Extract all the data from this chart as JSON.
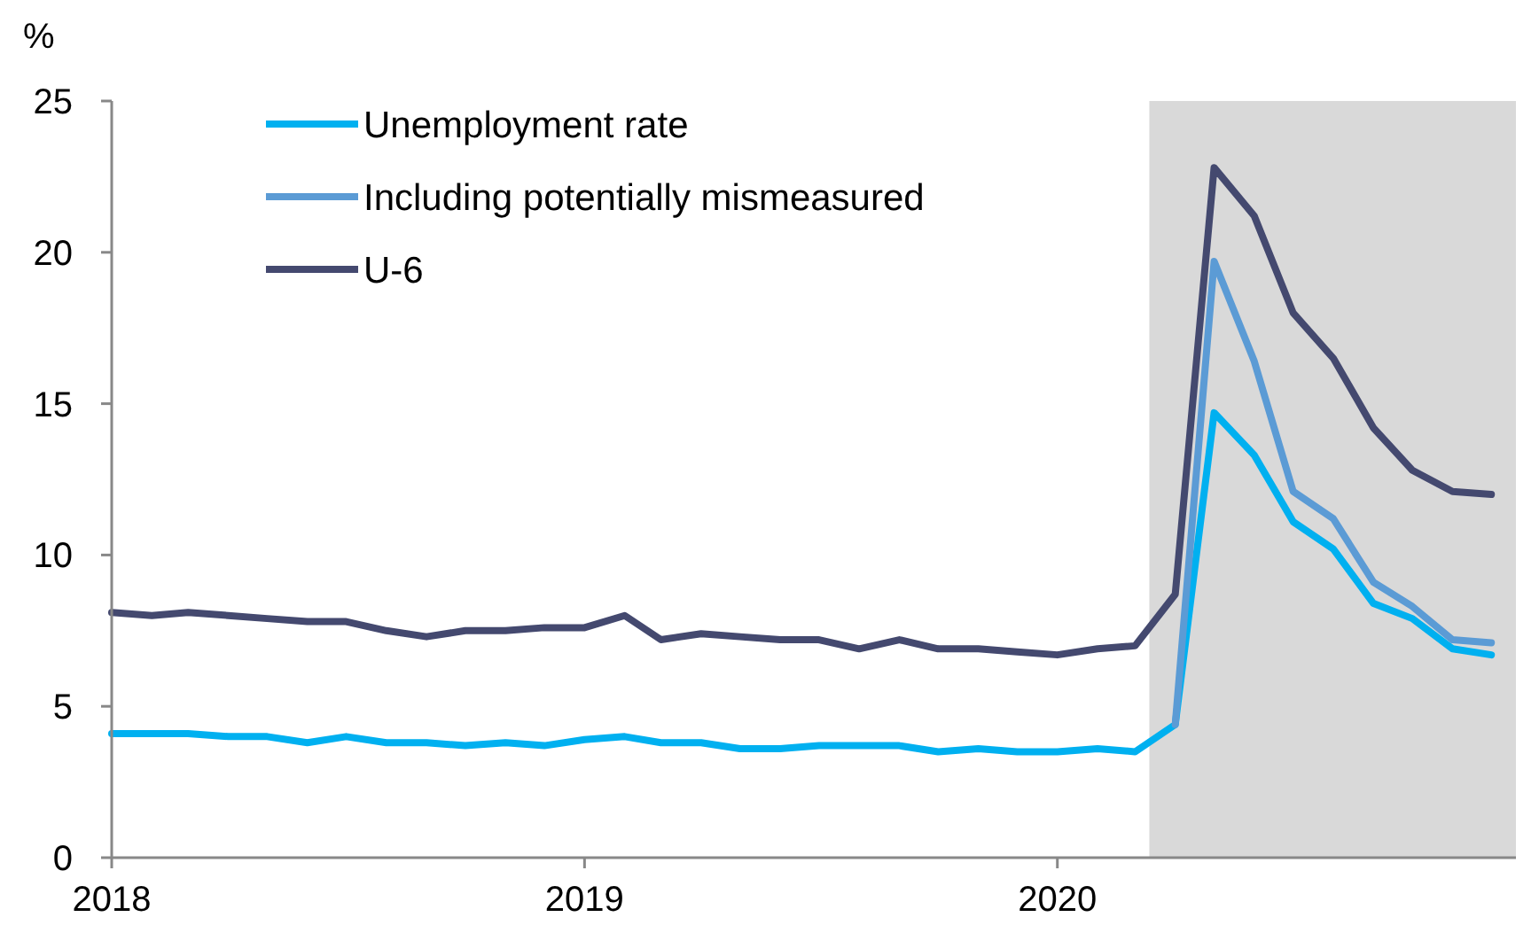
{
  "chart_data": {
    "type": "line",
    "ylabel": "%",
    "x": [
      "2018-01",
      "2018-02",
      "2018-03",
      "2018-04",
      "2018-05",
      "2018-06",
      "2018-07",
      "2018-08",
      "2018-09",
      "2018-10",
      "2018-11",
      "2018-12",
      "2019-01",
      "2019-02",
      "2019-03",
      "2019-04",
      "2019-05",
      "2019-06",
      "2019-07",
      "2019-08",
      "2019-09",
      "2019-10",
      "2019-11",
      "2019-12",
      "2020-01",
      "2020-02",
      "2020-03",
      "2020-04",
      "2020-05",
      "2020-06",
      "2020-07",
      "2020-08",
      "2020-09",
      "2020-10",
      "2020-11",
      "2020-12"
    ],
    "series": [
      {
        "name": "Unemployment rate",
        "color": "#00b0f0",
        "values": [
          4.1,
          4.1,
          4.1,
          4.0,
          4.0,
          3.8,
          4.0,
          3.8,
          3.8,
          3.7,
          3.8,
          3.7,
          3.9,
          4.0,
          3.8,
          3.8,
          3.6,
          3.6,
          3.7,
          3.7,
          3.7,
          3.5,
          3.6,
          3.5,
          3.5,
          3.6,
          3.5,
          4.4,
          14.7,
          13.3,
          11.1,
          10.2,
          8.4,
          7.9,
          6.9,
          6.7
        ]
      },
      {
        "name": "Including potentially mismeasured",
        "color": "#5b9bd5",
        "values": [
          null,
          null,
          null,
          null,
          null,
          null,
          null,
          null,
          null,
          null,
          null,
          null,
          null,
          null,
          null,
          null,
          null,
          null,
          null,
          null,
          null,
          null,
          null,
          null,
          null,
          null,
          null,
          4.4,
          19.7,
          16.4,
          12.1,
          11.2,
          9.1,
          8.3,
          7.2,
          7.1
        ]
      },
      {
        "name": "U-6",
        "color": "#44496f",
        "values": [
          8.1,
          8.0,
          8.1,
          8.0,
          7.9,
          7.8,
          7.8,
          7.5,
          7.3,
          7.5,
          7.5,
          7.6,
          7.6,
          8.0,
          7.2,
          7.4,
          7.3,
          7.2,
          7.2,
          6.9,
          7.2,
          6.9,
          6.9,
          6.8,
          6.7,
          6.9,
          7.0,
          8.7,
          22.8,
          21.2,
          18.0,
          16.5,
          14.2,
          12.8,
          12.1,
          12.0
        ]
      }
    ],
    "xlim": [
      "2018-01",
      "2020-12-20"
    ],
    "xticks": [
      {
        "value": "2018-01",
        "label": "2018"
      },
      {
        "value": "2019-01",
        "label": "2019"
      },
      {
        "value": "2020-01",
        "label": "2020"
      }
    ],
    "ylim": [
      0,
      25
    ],
    "yticks": [
      0,
      5,
      10,
      15,
      20,
      25
    ],
    "bands": [
      {
        "axis": "x",
        "from": "2020-03-12",
        "to": "2020-12-20",
        "color": "#d9d9d9"
      }
    ],
    "grid": false,
    "legend": "top left",
    "marker": "none",
    "line_style": "solid"
  }
}
